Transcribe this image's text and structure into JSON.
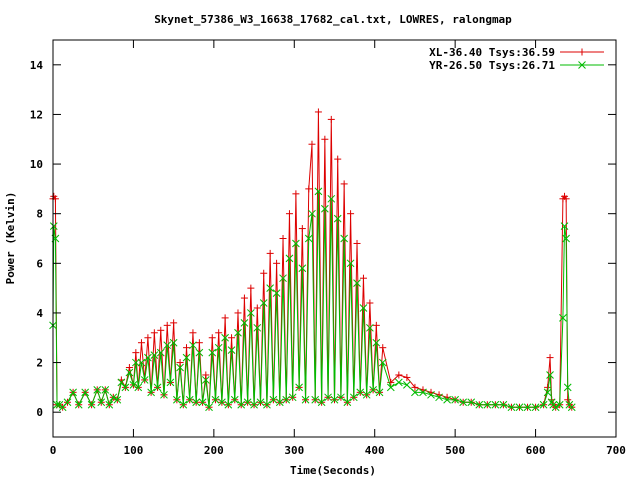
{
  "chart_data": {
    "type": "line",
    "title": "Skynet_57386_W3_16638_17682_cal.txt, LOWRES, ralongmap",
    "xlabel": "Time(Seconds)",
    "ylabel": "Power (Kelvin)",
    "xlim": [
      0,
      700
    ],
    "ylim": [
      -1,
      15
    ],
    "xticks": [
      0,
      100,
      200,
      300,
      400,
      500,
      600,
      700
    ],
    "yticks": [
      0,
      2,
      4,
      6,
      8,
      10,
      12,
      14
    ],
    "grid": false,
    "legend_position": "top-right",
    "series": [
      {
        "name": "XL-36.40 Tsys:36.59",
        "color": "#dd0000",
        "marker": "plus",
        "x": [
          0,
          1,
          3,
          5,
          8,
          12,
          18,
          25,
          32,
          40,
          48,
          55,
          60,
          65,
          70,
          75,
          80,
          85,
          90,
          95,
          100,
          103,
          106,
          110,
          114,
          118,
          122,
          126,
          130,
          134,
          138,
          142,
          146,
          150,
          154,
          158,
          162,
          166,
          170,
          174,
          178,
          182,
          186,
          190,
          194,
          198,
          202,
          206,
          210,
          214,
          218,
          222,
          226,
          230,
          234,
          238,
          242,
          246,
          250,
          254,
          258,
          262,
          266,
          270,
          274,
          278,
          282,
          286,
          290,
          294,
          298,
          302,
          306,
          310,
          314,
          318,
          322,
          326,
          330,
          334,
          338,
          342,
          346,
          350,
          354,
          358,
          362,
          366,
          370,
          374,
          378,
          382,
          386,
          390,
          394,
          398,
          402,
          406,
          410,
          420,
          430,
          440,
          450,
          460,
          470,
          480,
          490,
          500,
          510,
          520,
          530,
          540,
          550,
          560,
          570,
          580,
          590,
          600,
          610,
          615,
          618,
          620,
          622,
          625,
          630,
          634,
          636,
          638,
          640,
          642,
          645
        ],
        "y": [
          8.6,
          8.7,
          8.6,
          0.3,
          0.3,
          0.2,
          0.4,
          0.8,
          0.3,
          0.8,
          0.3,
          0.9,
          0.4,
          0.9,
          0.3,
          0.6,
          0.5,
          1.3,
          1.0,
          1.8,
          1.1,
          2.4,
          1.0,
          2.8,
          1.3,
          3.0,
          0.8,
          3.2,
          1.0,
          3.3,
          0.7,
          3.5,
          1.2,
          3.6,
          0.5,
          2.0,
          0.3,
          2.6,
          0.5,
          3.2,
          0.4,
          2.8,
          0.4,
          1.5,
          0.2,
          3.0,
          0.5,
          3.2,
          0.4,
          3.8,
          0.3,
          3.0,
          0.5,
          4.0,
          0.3,
          4.6,
          0.4,
          5.0,
          0.3,
          4.2,
          0.4,
          5.6,
          0.3,
          6.4,
          0.5,
          6.0,
          0.4,
          7.0,
          0.5,
          8.0,
          0.6,
          8.8,
          1.0,
          7.4,
          0.5,
          9.0,
          10.8,
          0.5,
          12.1,
          0.4,
          11.0,
          0.6,
          11.8,
          0.5,
          10.2,
          0.6,
          9.2,
          0.4,
          8.0,
          0.6,
          6.8,
          0.8,
          5.4,
          0.7,
          4.4,
          0.9,
          3.5,
          0.8,
          2.6,
          1.2,
          1.5,
          1.4,
          1.0,
          0.9,
          0.8,
          0.7,
          0.6,
          0.5,
          0.4,
          0.4,
          0.3,
          0.3,
          0.3,
          0.3,
          0.2,
          0.2,
          0.2,
          0.2,
          0.3,
          1.0,
          2.2,
          0.5,
          0.3,
          0.2,
          0.3,
          8.6,
          8.7,
          8.6,
          0.5,
          0.3,
          0.2
        ]
      },
      {
        "name": "YR-26.50 Tsys:26.71",
        "color": "#00bb00",
        "marker": "cross",
        "x": [
          0,
          1,
          3,
          5,
          8,
          12,
          18,
          25,
          32,
          40,
          48,
          55,
          60,
          65,
          70,
          75,
          80,
          85,
          90,
          95,
          100,
          103,
          106,
          110,
          114,
          118,
          122,
          126,
          130,
          134,
          138,
          142,
          146,
          150,
          154,
          158,
          162,
          166,
          170,
          174,
          178,
          182,
          186,
          190,
          194,
          198,
          202,
          206,
          210,
          214,
          218,
          222,
          226,
          230,
          234,
          238,
          242,
          246,
          250,
          254,
          258,
          262,
          266,
          270,
          274,
          278,
          282,
          286,
          290,
          294,
          298,
          302,
          306,
          310,
          314,
          318,
          322,
          326,
          330,
          334,
          338,
          342,
          346,
          350,
          354,
          358,
          362,
          366,
          370,
          374,
          378,
          382,
          386,
          390,
          394,
          398,
          402,
          406,
          410,
          420,
          430,
          440,
          450,
          460,
          470,
          480,
          490,
          500,
          510,
          520,
          530,
          540,
          550,
          560,
          570,
          580,
          590,
          600,
          610,
          615,
          618,
          620,
          622,
          625,
          630,
          634,
          636,
          638,
          640,
          642,
          645
        ],
        "y": [
          3.5,
          7.5,
          7.0,
          0.3,
          0.3,
          0.2,
          0.4,
          0.8,
          0.3,
          0.8,
          0.3,
          0.9,
          0.4,
          0.9,
          0.3,
          0.6,
          0.5,
          1.2,
          1.0,
          1.6,
          1.1,
          2.0,
          1.0,
          2.0,
          1.3,
          2.2,
          0.8,
          2.3,
          1.0,
          2.4,
          0.7,
          2.7,
          1.2,
          2.8,
          0.5,
          1.8,
          0.3,
          2.2,
          0.5,
          2.7,
          0.4,
          2.4,
          0.4,
          1.3,
          0.2,
          2.4,
          0.5,
          2.6,
          0.4,
          3.0,
          0.3,
          2.5,
          0.5,
          3.2,
          0.3,
          3.6,
          0.4,
          4.0,
          0.3,
          3.4,
          0.4,
          4.4,
          0.3,
          5.0,
          0.5,
          4.8,
          0.4,
          5.4,
          0.5,
          6.2,
          0.6,
          6.8,
          1.0,
          5.8,
          0.5,
          7.0,
          8.0,
          0.5,
          8.9,
          0.4,
          8.2,
          0.6,
          8.6,
          0.5,
          7.8,
          0.6,
          7.0,
          0.4,
          6.0,
          0.6,
          5.2,
          0.8,
          4.2,
          0.7,
          3.4,
          0.9,
          2.8,
          0.8,
          2.0,
          1.0,
          1.2,
          1.1,
          0.8,
          0.8,
          0.7,
          0.6,
          0.5,
          0.5,
          0.4,
          0.4,
          0.3,
          0.3,
          0.3,
          0.3,
          0.2,
          0.2,
          0.2,
          0.2,
          0.3,
          0.8,
          1.5,
          0.4,
          0.3,
          0.2,
          0.3,
          3.8,
          7.5,
          7.0,
          1.0,
          0.3,
          0.2
        ]
      }
    ]
  }
}
